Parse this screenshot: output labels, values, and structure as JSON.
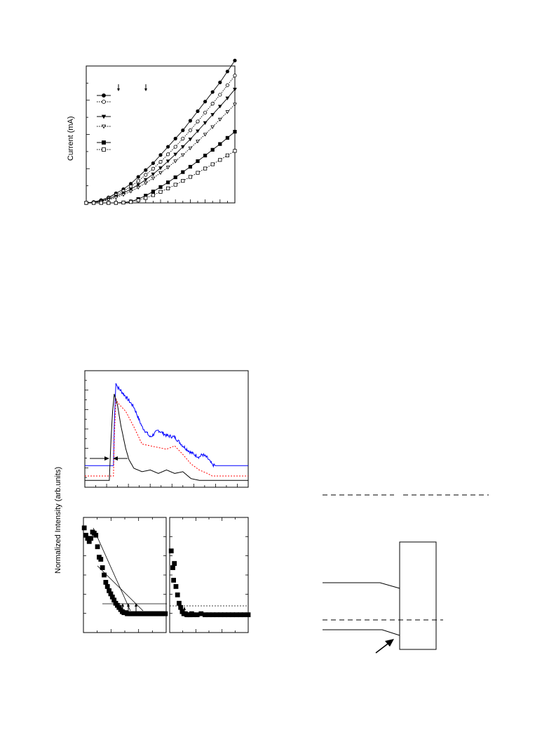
{
  "figure_top": {
    "ylabel": "Current (mA)",
    "legend_markers": [
      "filled-circle",
      "open-circle",
      "filled-triangle-down",
      "open-triangle-down",
      "filled-square",
      "open-square"
    ],
    "chart_data": {
      "type": "line",
      "xlim": [
        0,
        20
      ],
      "ylim": [
        0,
        100
      ],
      "series": [
        {
          "marker": "filled-circle",
          "line": "solid",
          "x": [
            0,
            1,
            2,
            3,
            4,
            5,
            6,
            7,
            8,
            9,
            10,
            11,
            12,
            13,
            14,
            15,
            16,
            17,
            18,
            19,
            20
          ],
          "y": [
            0,
            0.6,
            2,
            4,
            7,
            10,
            14,
            19,
            24,
            29,
            35,
            41,
            47,
            53,
            60,
            67,
            74,
            81,
            88,
            96,
            104
          ]
        },
        {
          "marker": "open-circle",
          "line": "dotted",
          "x": [
            0,
            1,
            2,
            3,
            4,
            5,
            6,
            7,
            8,
            9,
            10,
            11,
            12,
            13,
            14,
            15,
            16,
            17,
            18,
            19,
            20
          ],
          "y": [
            0,
            0.5,
            1.6,
            3.5,
            5.8,
            8.6,
            12,
            16,
            20.5,
            25,
            30,
            35.5,
            41,
            47,
            53,
            59.5,
            66,
            72.5,
            79,
            86,
            93
          ]
        },
        {
          "marker": "filled-triangle-down",
          "line": "solid",
          "x": [
            0,
            1,
            2,
            3,
            4,
            5,
            6,
            7,
            8,
            9,
            10,
            11,
            12,
            13,
            14,
            15,
            16,
            17,
            18,
            19,
            20
          ],
          "y": [
            0,
            0.4,
            1.3,
            2.8,
            4.8,
            7.2,
            10,
            13.3,
            17,
            21,
            25.5,
            30.5,
            35.5,
            41,
            46.5,
            52.5,
            58.5,
            64.5,
            70.5,
            76.5,
            83
          ]
        },
        {
          "marker": "open-triangle-down",
          "line": "dotted",
          "x": [
            0,
            1,
            2,
            3,
            4,
            5,
            6,
            7,
            8,
            9,
            10,
            11,
            12,
            13,
            14,
            15,
            16,
            17,
            18,
            19,
            20
          ],
          "y": [
            0,
            0.3,
            1,
            2.2,
            3.9,
            6,
            8.5,
            11.3,
            14.5,
            18,
            22,
            26,
            30.5,
            35,
            40,
            45,
            50,
            55.5,
            61,
            66.5,
            72
          ]
        },
        {
          "marker": "filled-square",
          "line": "solid",
          "x": [
            0,
            1,
            2,
            3,
            4,
            5,
            6,
            7,
            8,
            9,
            10,
            11,
            12,
            13,
            14,
            15,
            16,
            17,
            18,
            19,
            20
          ],
          "y": [
            0,
            0,
            0,
            0,
            0,
            0.3,
            1,
            2.8,
            5.3,
            8.3,
            11.6,
            15,
            18.7,
            22.5,
            26.4,
            30.5,
            34.6,
            38.8,
            43,
            47.5,
            52
          ]
        },
        {
          "marker": "open-square",
          "line": "dotted",
          "x": [
            0,
            1,
            2,
            3,
            4,
            5,
            6,
            7,
            8,
            9,
            10,
            11,
            12,
            13,
            14,
            15,
            16,
            17,
            18,
            19,
            20
          ],
          "y": [
            0,
            0,
            0,
            0,
            0,
            0.2,
            0.7,
            1.9,
            3.6,
            5.7,
            8.1,
            10.6,
            13.3,
            16.1,
            19,
            22,
            25.1,
            28.2,
            31.4,
            34.7,
            38
          ]
        }
      ]
    }
  },
  "figure_mid": {
    "ylabel": "Normalized Intensity (arb.units)",
    "chart_data": {
      "type": "line",
      "xlim": [
        0,
        100
      ],
      "ylim": [
        0,
        1.35
      ],
      "series": [
        {
          "color": "#0000ff",
          "line": "solid",
          "x": [
            0,
            17.5,
            18,
            19,
            20,
            22,
            25,
            30,
            35,
            40,
            45,
            50,
            55,
            60,
            65,
            70,
            72,
            75,
            78,
            80,
            100
          ],
          "y": [
            0.25,
            0.25,
            0.7,
            1.22,
            1.16,
            1.12,
            1.05,
            0.93,
            0.7,
            0.58,
            0.66,
            0.6,
            0.58,
            0.48,
            0.4,
            0.35,
            0.38,
            0.34,
            0.26,
            0.25,
            0.25
          ]
        },
        {
          "color": "#ff0000",
          "line": "dotted",
          "x": [
            0,
            17.5,
            18,
            19,
            20,
            22,
            25,
            30,
            35,
            40,
            45,
            50,
            55,
            60,
            65,
            70,
            75,
            78,
            80,
            100
          ],
          "y": [
            0.13,
            0.13,
            0.55,
            1.03,
            0.98,
            0.94,
            0.88,
            0.7,
            0.5,
            0.48,
            0.46,
            0.44,
            0.48,
            0.38,
            0.27,
            0.2,
            0.16,
            0.13,
            0.13,
            0.13
          ]
        },
        {
          "color": "#000000",
          "line": "solid",
          "x": [
            0,
            15,
            16,
            17,
            18,
            20,
            22,
            25,
            27,
            30,
            35,
            40,
            45,
            50,
            55,
            60,
            65,
            70,
            75,
            80,
            85,
            100
          ],
          "y": [
            0.08,
            0.08,
            0.55,
            0.88,
            1.08,
            0.95,
            0.72,
            0.45,
            0.32,
            0.22,
            0.18,
            0.2,
            0.16,
            0.2,
            0.16,
            0.18,
            0.1,
            0.08,
            0.08,
            0.08,
            0.08,
            0.08
          ]
        }
      ]
    }
  },
  "figure_bottom": {
    "chart_data": [
      {
        "type": "scatter",
        "marker": "filled-square",
        "xlim": [
          0,
          100
        ],
        "ylim": [
          0,
          1.1
        ],
        "x": [
          1,
          3,
          5,
          7,
          9,
          11,
          13,
          15,
          17,
          19,
          21,
          23,
          25,
          27,
          29,
          31,
          33,
          35,
          37,
          39,
          41,
          43,
          45,
          47,
          49,
          51,
          53,
          55,
          57,
          59,
          61,
          63,
          65,
          67,
          69,
          71,
          73,
          75,
          77,
          79,
          81,
          83,
          85,
          87,
          89,
          91,
          93,
          95,
          97,
          99
        ],
        "y": [
          1.0,
          0.93,
          0.9,
          0.87,
          0.9,
          0.96,
          0.95,
          0.93,
          0.82,
          0.72,
          0.7,
          0.62,
          0.55,
          0.48,
          0.44,
          0.4,
          0.37,
          0.34,
          0.31,
          0.28,
          0.26,
          0.24,
          0.22,
          0.2,
          0.19,
          0.19,
          0.18,
          0.18,
          0.18,
          0.18,
          0.18,
          0.18,
          0.18,
          0.18,
          0.18,
          0.18,
          0.18,
          0.18,
          0.18,
          0.18,
          0.18,
          0.18,
          0.18,
          0.18,
          0.18,
          0.18,
          0.18,
          0.18,
          0.18,
          0.18
        ]
      },
      {
        "type": "scatter",
        "marker": "filled-square",
        "xlim": [
          0,
          100
        ],
        "ylim": [
          0,
          1.1
        ],
        "x": [
          2,
          4,
          5,
          6,
          8,
          10,
          12,
          14,
          16,
          18,
          20,
          22,
          24,
          26,
          28,
          30,
          35,
          40,
          45,
          50,
          55,
          60,
          65,
          70,
          75,
          80,
          85,
          90,
          95,
          100
        ],
        "y": [
          0.78,
          0.62,
          0.5,
          0.66,
          0.44,
          0.36,
          0.28,
          0.24,
          0.2,
          0.18,
          0.18,
          0.17,
          0.17,
          0.17,
          0.18,
          0.17,
          0.17,
          0.18,
          0.17,
          0.17,
          0.17,
          0.17,
          0.17,
          0.17,
          0.17,
          0.17,
          0.17,
          0.17,
          0.17,
          0.17
        ]
      }
    ]
  },
  "figure_right": {
    "elements": [
      "dashed-line-top",
      "box",
      "lead-upper",
      "lead-lower",
      "dashed-line-mid",
      "pointer-arrow"
    ]
  }
}
